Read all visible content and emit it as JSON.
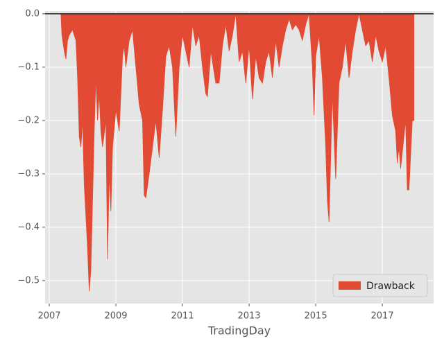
{
  "chart_data": {
    "type": "area",
    "x_label": "TradingDay",
    "series": [
      {
        "name": "Drawback",
        "color": "#e24a33",
        "x": [
          2007.35,
          2007.38,
          2007.45,
          2007.5,
          2007.55,
          2007.6,
          2007.7,
          2007.8,
          2007.85,
          2007.9,
          2007.95,
          2008.0,
          2008.05,
          2008.1,
          2008.15,
          2008.2,
          2008.25,
          2008.3,
          2008.35,
          2008.4,
          2008.45,
          2008.5,
          2008.55,
          2008.6,
          2008.7,
          2008.75,
          2008.8,
          2008.85,
          2008.9,
          2009.0,
          2009.1,
          2009.2,
          2009.25,
          2009.3,
          2009.4,
          2009.5,
          2009.6,
          2009.7,
          2009.8,
          2009.85,
          2009.9,
          2010.0,
          2010.1,
          2010.2,
          2010.3,
          2010.4,
          2010.5,
          2010.6,
          2010.7,
          2010.8,
          2010.9,
          2011.0,
          2011.1,
          2011.2,
          2011.3,
          2011.4,
          2011.5,
          2011.6,
          2011.7,
          2011.75,
          2011.85,
          2012.0,
          2012.1,
          2012.2,
          2012.3,
          2012.4,
          2012.5,
          2012.6,
          2012.7,
          2012.8,
          2012.9,
          2013.0,
          2013.1,
          2013.2,
          2013.3,
          2013.4,
          2013.5,
          2013.6,
          2013.7,
          2013.8,
          2013.9,
          2014.0,
          2014.1,
          2014.2,
          2014.3,
          2014.4,
          2014.5,
          2014.6,
          2014.7,
          2014.8,
          2014.9,
          2014.95,
          2015.0,
          2015.1,
          2015.2,
          2015.3,
          2015.35,
          2015.4,
          2015.5,
          2015.6,
          2015.7,
          2015.8,
          2015.9,
          2016.0,
          2016.1,
          2016.2,
          2016.3,
          2016.4,
          2016.5,
          2016.6,
          2016.7,
          2016.8,
          2016.9,
          2017.0,
          2017.1,
          2017.2,
          2017.3,
          2017.4,
          2017.45,
          2017.5,
          2017.55,
          2017.6,
          2017.7,
          2017.75,
          2017.8,
          2017.9,
          2017.95
        ],
        "values": [
          0,
          -0.04,
          -0.07,
          -0.085,
          -0.05,
          -0.04,
          -0.03,
          -0.05,
          -0.12,
          -0.23,
          -0.25,
          -0.2,
          -0.32,
          -0.38,
          -0.44,
          -0.52,
          -0.48,
          -0.35,
          -0.22,
          -0.12,
          -0.2,
          -0.15,
          -0.22,
          -0.25,
          -0.2,
          -0.46,
          -0.3,
          -0.37,
          -0.25,
          -0.18,
          -0.22,
          -0.08,
          -0.06,
          -0.1,
          -0.05,
          -0.03,
          -0.1,
          -0.17,
          -0.2,
          -0.34,
          -0.345,
          -0.3,
          -0.25,
          -0.2,
          -0.27,
          -0.18,
          -0.08,
          -0.06,
          -0.1,
          -0.23,
          -0.1,
          -0.04,
          -0.07,
          -0.1,
          -0.02,
          -0.06,
          -0.04,
          -0.1,
          -0.15,
          -0.155,
          -0.07,
          -0.13,
          -0.13,
          -0.06,
          -0.02,
          -0.07,
          -0.04,
          0,
          -0.09,
          -0.07,
          -0.13,
          -0.06,
          -0.16,
          -0.08,
          -0.12,
          -0.13,
          -0.09,
          -0.07,
          -0.12,
          -0.05,
          -0.1,
          -0.06,
          -0.03,
          -0.01,
          -0.03,
          -0.02,
          -0.03,
          -0.05,
          -0.02,
          0,
          -0.1,
          -0.19,
          -0.08,
          -0.04,
          -0.12,
          -0.25,
          -0.35,
          -0.39,
          -0.15,
          -0.31,
          -0.13,
          -0.1,
          -0.05,
          -0.12,
          -0.07,
          -0.03,
          0,
          -0.03,
          -0.06,
          -0.05,
          -0.09,
          -0.04,
          -0.07,
          -0.09,
          -0.06,
          -0.12,
          -0.19,
          -0.22,
          -0.28,
          -0.25,
          -0.29,
          -0.26,
          -0.2,
          -0.33,
          -0.33,
          -0.2,
          -0.2
        ]
      }
    ],
    "xlim": [
      2006.875,
      2018.54
    ],
    "xticks": [
      2007,
      2009,
      2011,
      2013,
      2015,
      2017
    ],
    "ylim": [
      -0.543,
      0.005
    ],
    "yticks": [
      {
        "value": 0,
        "label": "0.0"
      },
      {
        "value": -0.1,
        "label": "−0.1"
      },
      {
        "value": -0.2,
        "label": "−0.2"
      },
      {
        "value": -0.3,
        "label": "−0.3"
      },
      {
        "value": -0.4,
        "label": "−0.4"
      },
      {
        "value": -0.5,
        "label": "−0.5"
      }
    ],
    "grid": true,
    "legend": "lower right"
  }
}
